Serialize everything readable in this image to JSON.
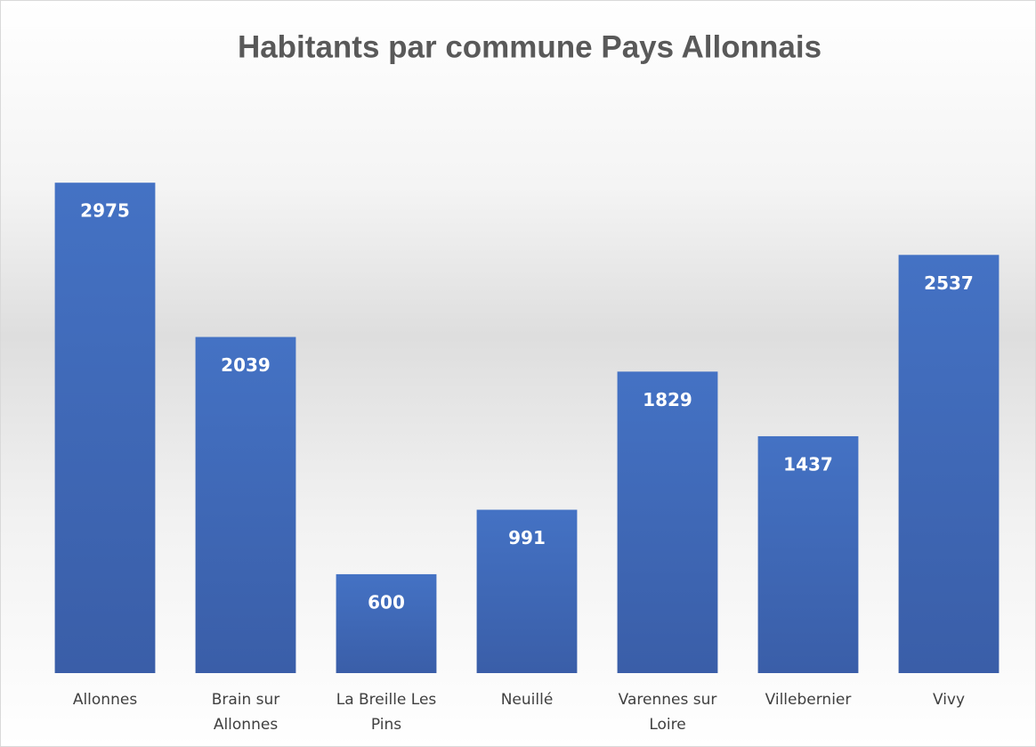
{
  "chart_data": {
    "type": "bar",
    "title": "Habitants par commune Pays Allonnais",
    "categories": [
      "Allonnes",
      "Brain sur Allonnes",
      "La Breille Les Pins",
      "Neuillé",
      "Varennes sur Loire",
      "Villebernier",
      "Vivy"
    ],
    "values": [
      2975,
      2039,
      600,
      991,
      1829,
      1437,
      2537
    ],
    "color": "#4472c4",
    "ylim": [
      0,
      3500
    ]
  }
}
